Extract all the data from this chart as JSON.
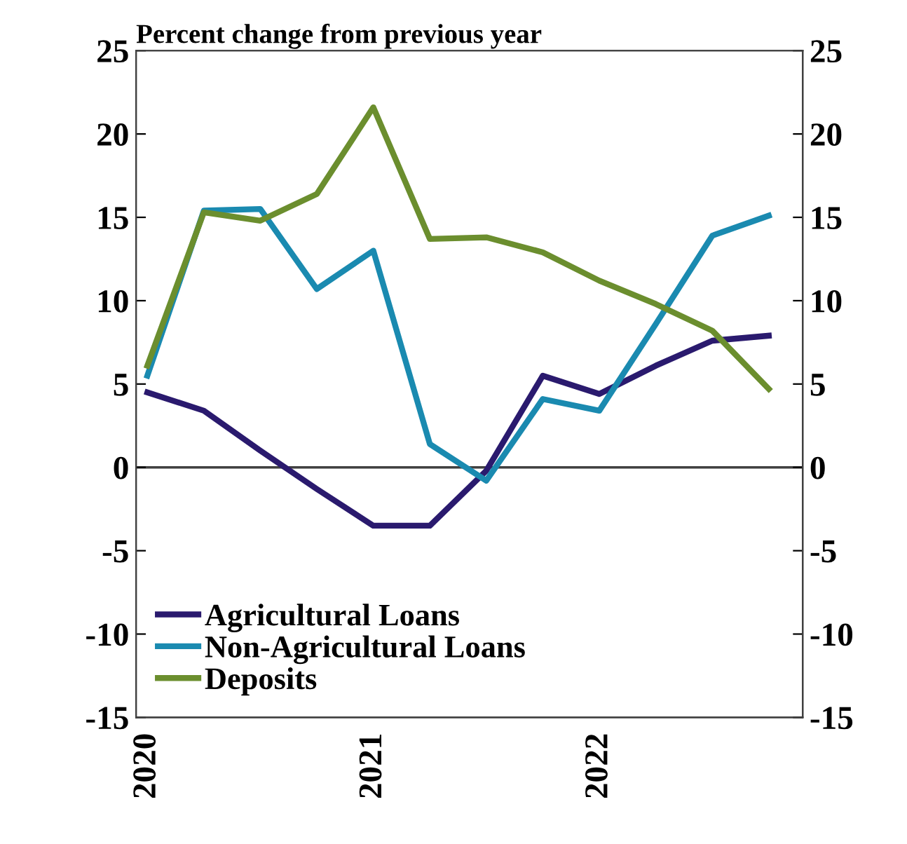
{
  "chart_data": {
    "type": "line",
    "title": "Percent change from previous year",
    "categories": [
      "2020",
      null,
      null,
      null,
      "2021",
      null,
      null,
      null,
      "2022",
      null,
      null,
      null
    ],
    "series": [
      {
        "name": "Agricultural Loans",
        "color": "#2a1a6e",
        "values": [
          4.5,
          3.4,
          1.0,
          -1.3,
          -3.5,
          -3.5,
          -0.2,
          5.5,
          4.4,
          6.1,
          7.6,
          7.9
        ]
      },
      {
        "name": "Non-Agricultural Loans",
        "color": "#1a8ab0",
        "values": [
          5.5,
          15.4,
          15.5,
          10.7,
          13.0,
          1.4,
          -0.8,
          4.1,
          3.4,
          8.6,
          13.9,
          15.1
        ]
      },
      {
        "name": "Deposits",
        "color": "#6b8e2e",
        "values": [
          6.1,
          15.3,
          14.8,
          16.4,
          21.6,
          13.7,
          13.8,
          12.9,
          11.2,
          9.8,
          8.2,
          4.7
        ]
      }
    ],
    "ylim": [
      -15,
      25
    ],
    "yticks": [
      -15,
      -10,
      -5,
      0,
      5,
      10,
      15,
      20,
      25
    ],
    "y2lim": [
      -15,
      25
    ],
    "y2ticks": [
      -15,
      -10,
      -5,
      0,
      5,
      10,
      15,
      20,
      25
    ],
    "ref_lines": [
      {
        "axis": "y",
        "value": 0,
        "color": "#404040"
      }
    ],
    "legend": "bottom left",
    "grid": false,
    "marker": "none",
    "line_style": "solid"
  }
}
